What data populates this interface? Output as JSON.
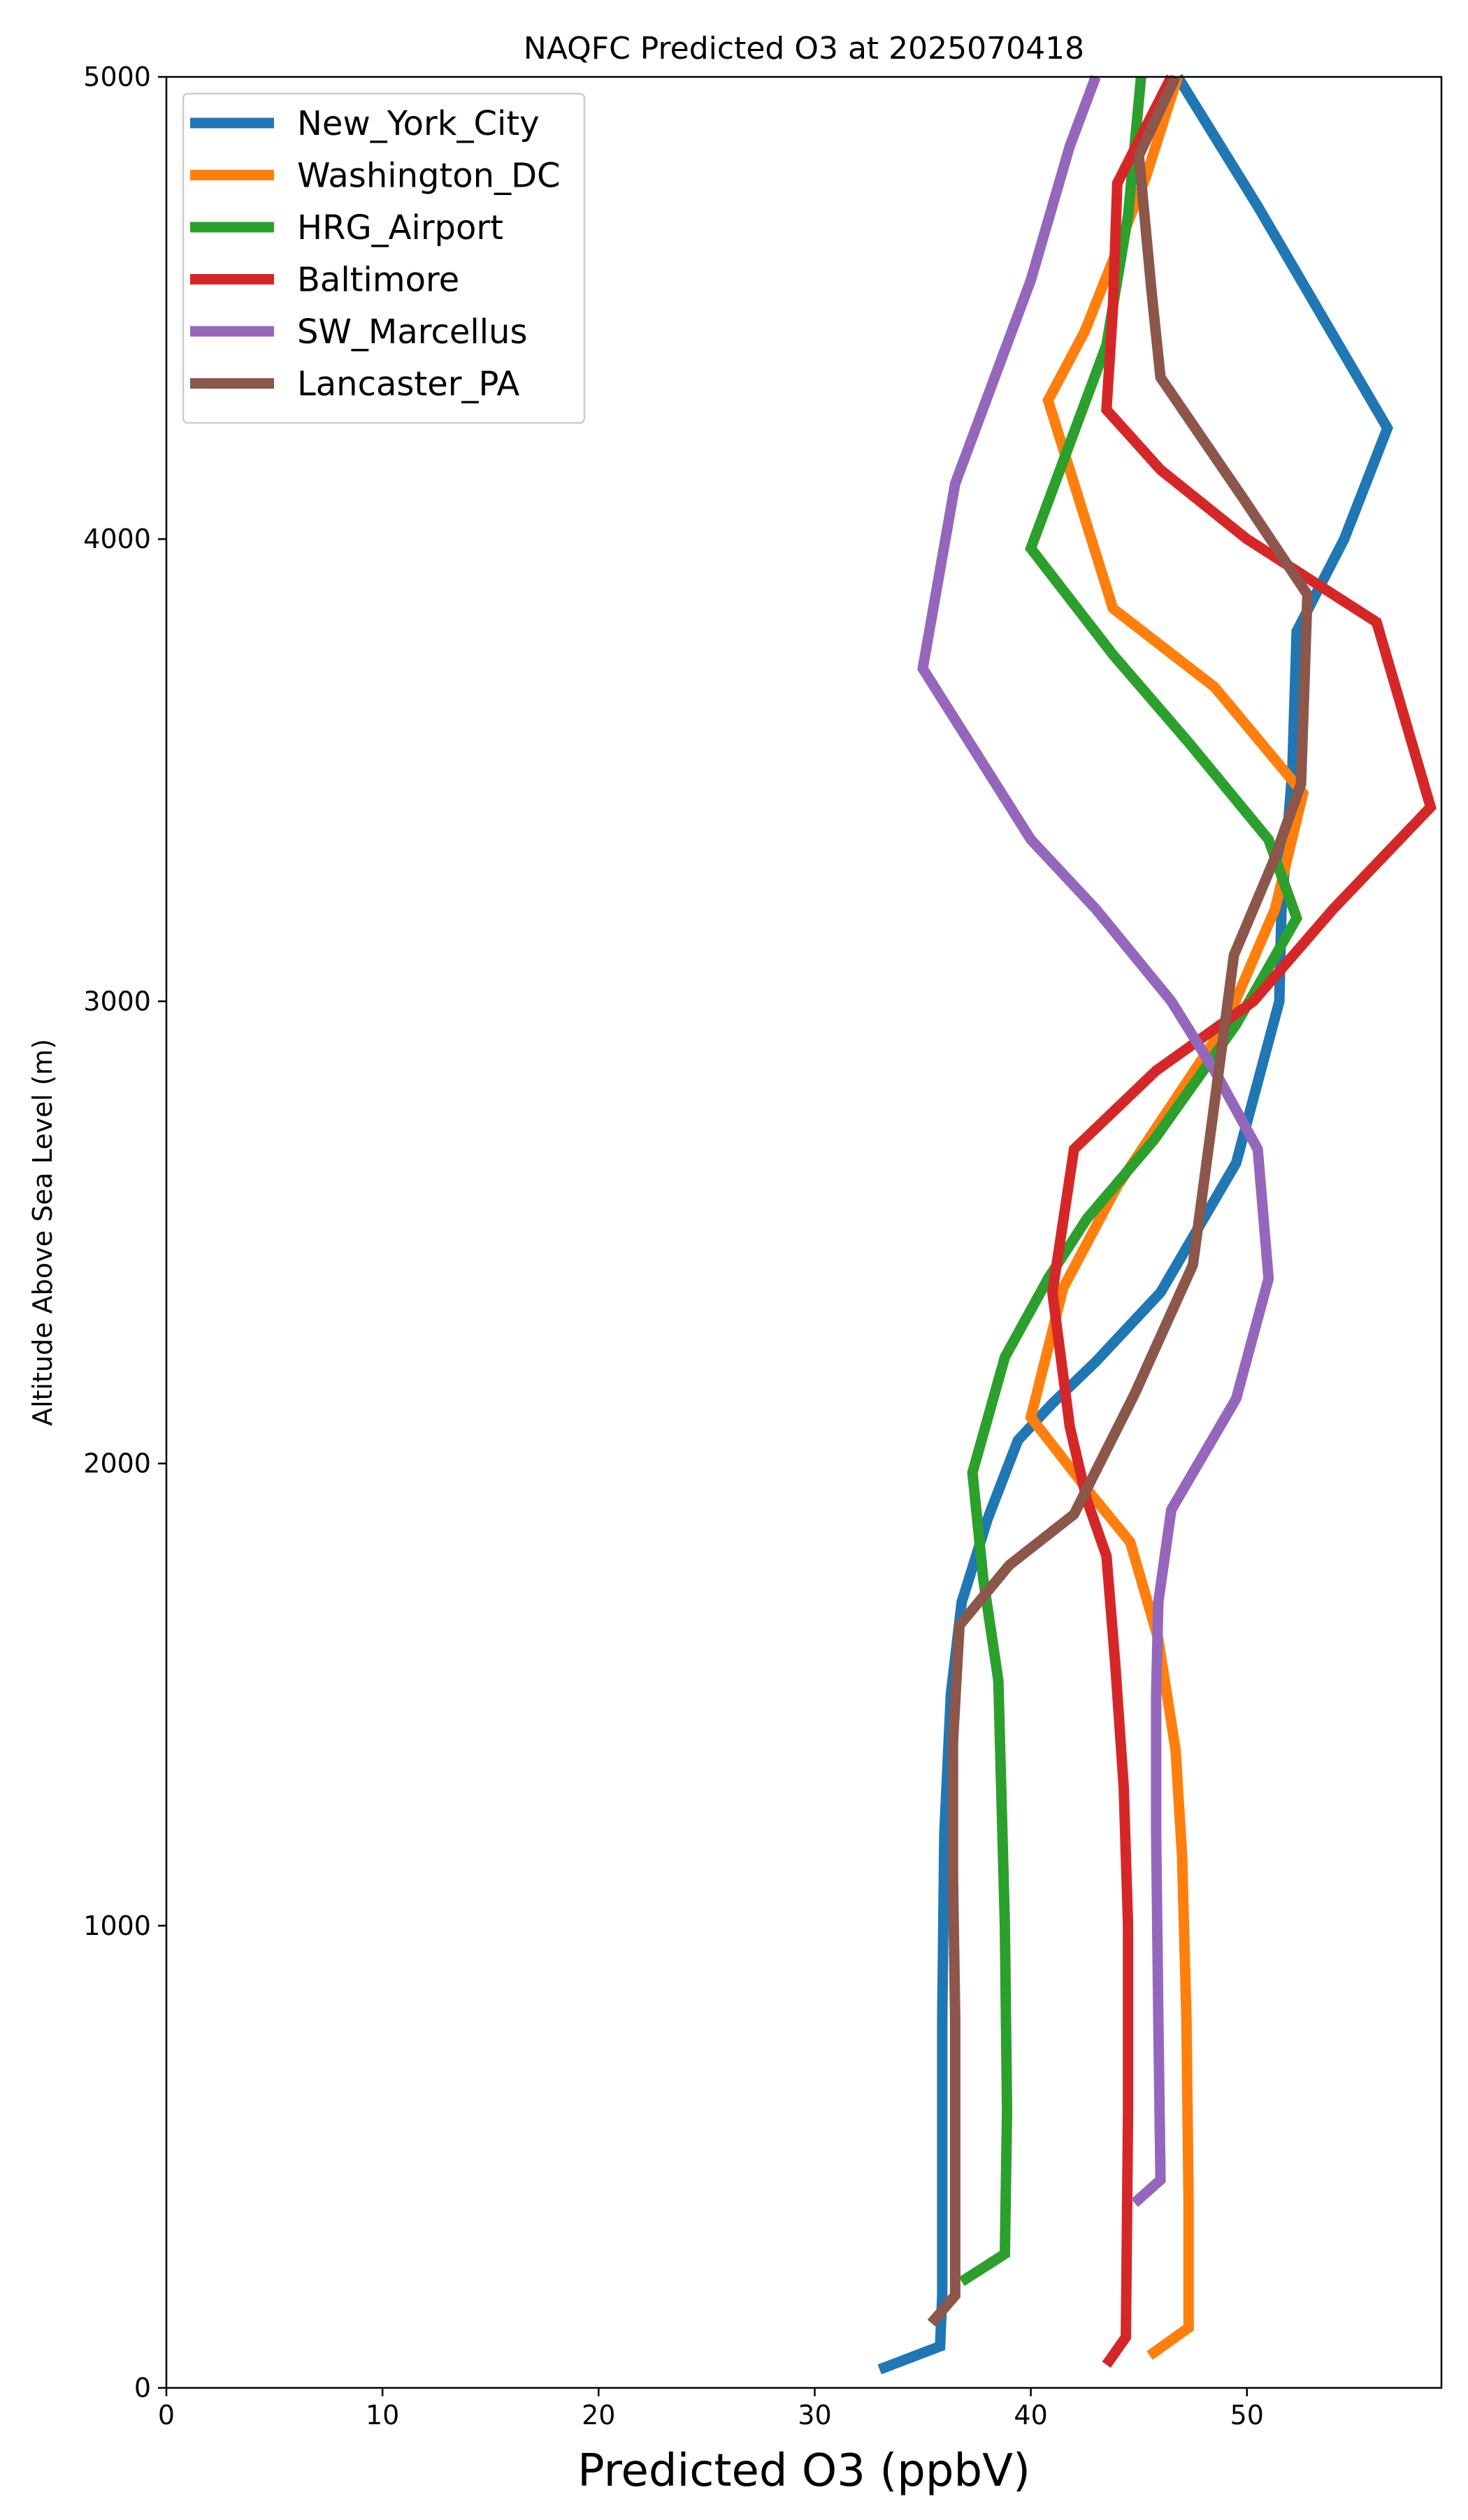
{
  "chart_data": {
    "type": "line",
    "title": "NAQFC Predicted O3 at 2025070418",
    "xlabel": "Predicted O3 (ppbV)",
    "ylabel": "Altitude Above Sea Level (m)",
    "xlim": [
      0,
      59
    ],
    "ylim": [
      0,
      5000
    ],
    "xticks": [
      "0",
      "10",
      "20",
      "30",
      "40",
      "50"
    ],
    "yticks": [
      "0",
      "1000",
      "2000",
      "3000",
      "4000",
      "5000"
    ],
    "grid": false,
    "legend_position": "upper-left",
    "series": [
      {
        "name": "New_York_City",
        "color": "#1f77b4",
        "points": [
          [
            33.0,
            40
          ],
          [
            35.8,
            90
          ],
          [
            35.9,
            200
          ],
          [
            35.9,
            400
          ],
          [
            35.9,
            800
          ],
          [
            36.0,
            1200
          ],
          [
            36.3,
            1500
          ],
          [
            36.8,
            1700
          ],
          [
            38.0,
            1880
          ],
          [
            39.4,
            2050
          ],
          [
            41.0,
            2130
          ],
          [
            43.0,
            2220
          ],
          [
            46.0,
            2370
          ],
          [
            49.5,
            2650
          ],
          [
            51.5,
            3000
          ],
          [
            51.6,
            3200
          ],
          [
            52.1,
            3500
          ],
          [
            52.3,
            3800
          ],
          [
            54.5,
            4000
          ],
          [
            56.5,
            4240
          ],
          [
            50.5,
            4720
          ],
          [
            46.8,
            5000
          ]
        ]
      },
      {
        "name": "Washington_DC",
        "color": "#ff7f0e",
        "points": [
          [
            45.5,
            70
          ],
          [
            47.3,
            130
          ],
          [
            47.3,
            400
          ],
          [
            47.2,
            800
          ],
          [
            47.0,
            1150
          ],
          [
            46.7,
            1380
          ],
          [
            45.9,
            1620
          ],
          [
            44.6,
            1830
          ],
          [
            42.5,
            1950
          ],
          [
            40.0,
            2100
          ],
          [
            41.5,
            2380
          ],
          [
            44.0,
            2600
          ],
          [
            49.0,
            2950
          ],
          [
            51.3,
            3200
          ],
          [
            52.6,
            3450
          ],
          [
            48.5,
            3680
          ],
          [
            43.8,
            3850
          ],
          [
            40.8,
            4300
          ],
          [
            42.5,
            4450
          ],
          [
            45.3,
            4780
          ],
          [
            46.8,
            5000
          ]
        ]
      },
      {
        "name": "HRG_Airport",
        "color": "#2ca02c",
        "points": [
          [
            36.8,
            230
          ],
          [
            38.8,
            290
          ],
          [
            38.9,
            600
          ],
          [
            38.8,
            1000
          ],
          [
            38.6,
            1350
          ],
          [
            38.5,
            1530
          ],
          [
            37.8,
            1750
          ],
          [
            37.3,
            1980
          ],
          [
            38.8,
            2230
          ],
          [
            40.8,
            2400
          ],
          [
            42.6,
            2530
          ],
          [
            45.7,
            2700
          ],
          [
            49.5,
            2950
          ],
          [
            52.3,
            3180
          ],
          [
            51.0,
            3350
          ],
          [
            47.3,
            3560
          ],
          [
            43.8,
            3750
          ],
          [
            40.0,
            3980
          ],
          [
            43.5,
            4420
          ],
          [
            44.5,
            4700
          ],
          [
            45.1,
            5000
          ]
        ]
      },
      {
        "name": "Baltimore",
        "color": "#d62728",
        "points": [
          [
            43.5,
            50
          ],
          [
            44.4,
            110
          ],
          [
            44.5,
            600
          ],
          [
            44.5,
            1000
          ],
          [
            44.3,
            1300
          ],
          [
            43.9,
            1570
          ],
          [
            43.5,
            1800
          ],
          [
            42.6,
            1920
          ],
          [
            41.8,
            2080
          ],
          [
            41.0,
            2370
          ],
          [
            42.0,
            2680
          ],
          [
            45.8,
            2850
          ],
          [
            50.3,
            3000
          ],
          [
            54.0,
            3200
          ],
          [
            58.5,
            3420
          ],
          [
            56.0,
            3820
          ],
          [
            50.0,
            4000
          ],
          [
            46.0,
            4150
          ],
          [
            43.5,
            4280
          ],
          [
            43.8,
            4500
          ],
          [
            44.0,
            4770
          ],
          [
            46.5,
            5000
          ]
        ]
      },
      {
        "name": "SW_Marcellus",
        "color": "#9467bd",
        "points": [
          [
            44.8,
            400
          ],
          [
            46.0,
            450
          ],
          [
            45.9,
            800
          ],
          [
            45.8,
            1200
          ],
          [
            45.8,
            1500
          ],
          [
            45.9,
            1700
          ],
          [
            46.5,
            1900
          ],
          [
            49.5,
            2140
          ],
          [
            51.0,
            2400
          ],
          [
            50.5,
            2680
          ],
          [
            48.5,
            2850
          ],
          [
            46.5,
            3000
          ],
          [
            43.0,
            3200
          ],
          [
            40.0,
            3350
          ],
          [
            35.0,
            3720
          ],
          [
            36.5,
            4120
          ],
          [
            40.0,
            4560
          ],
          [
            41.8,
            4850
          ],
          [
            43.0,
            5000
          ]
        ]
      },
      {
        "name": "Lancaster_PA",
        "color": "#8c564b",
        "points": [
          [
            35.4,
            140
          ],
          [
            36.5,
            200
          ],
          [
            36.5,
            400
          ],
          [
            36.5,
            800
          ],
          [
            36.4,
            1100
          ],
          [
            36.4,
            1400
          ],
          [
            36.7,
            1650
          ],
          [
            39.0,
            1780
          ],
          [
            42.0,
            1890
          ],
          [
            44.8,
            2150
          ],
          [
            47.5,
            2430
          ],
          [
            48.5,
            2780
          ],
          [
            49.4,
            3100
          ],
          [
            51.2,
            3300
          ],
          [
            52.5,
            3470
          ],
          [
            52.8,
            3880
          ],
          [
            49.8,
            4090
          ],
          [
            46.0,
            4350
          ],
          [
            45.6,
            4530
          ],
          [
            45.0,
            4830
          ],
          [
            46.7,
            5000
          ]
        ]
      }
    ]
  }
}
